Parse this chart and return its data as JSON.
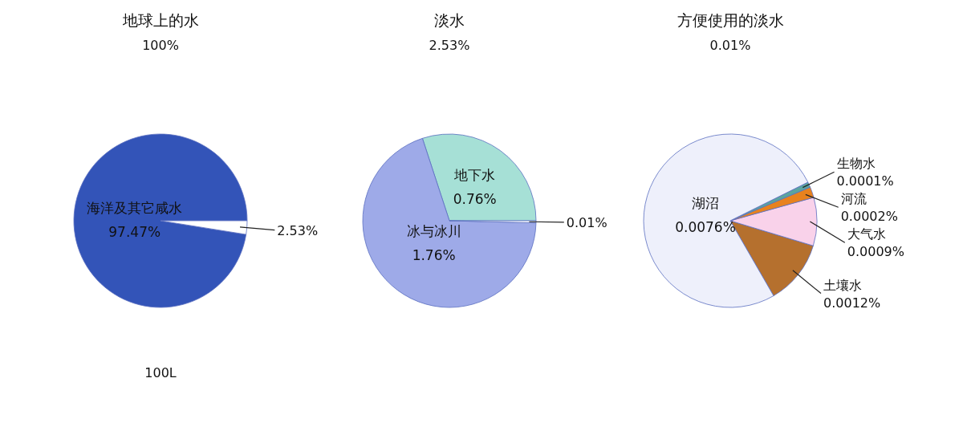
{
  "chart_data": [
    {
      "type": "pie",
      "title": "地球上的水",
      "subtitle": "100%",
      "categories": [
        "海洋及其它咸水",
        null
      ],
      "values": [
        97.47,
        2.53
      ],
      "colors": [
        "#3354b8",
        "#ffffff"
      ],
      "value_labels": [
        "97.47%",
        "2.53%"
      ],
      "annotations": [
        "100L"
      ]
    },
    {
      "type": "pie",
      "title": "淡水",
      "subtitle": "2.53%",
      "categories": [
        "地下水",
        "冰与冰川",
        null
      ],
      "values": [
        0.76,
        1.76,
        0.01
      ],
      "colors": [
        "#a6e0d6",
        "#9eaae8",
        "#ffffff"
      ],
      "value_labels": [
        "0.76%",
        "1.76%",
        "0.01%"
      ]
    },
    {
      "type": "pie",
      "title": "方便使用的淡水",
      "subtitle": "0.01%",
      "categories": [
        "土壤水",
        "大气水",
        "河流",
        "生物水",
        "湖沼"
      ],
      "values": [
        0.0012,
        0.0009,
        0.0002,
        0.0001,
        0.0076
      ],
      "colors": [
        "#b5702e",
        "#f9d2ea",
        "#e8821e",
        "#5aa4a0",
        "#eef0fb"
      ],
      "value_labels": [
        "0.0012%",
        "0.0009%",
        "0.0002%",
        "0.0001%",
        "0.0076%"
      ]
    }
  ]
}
